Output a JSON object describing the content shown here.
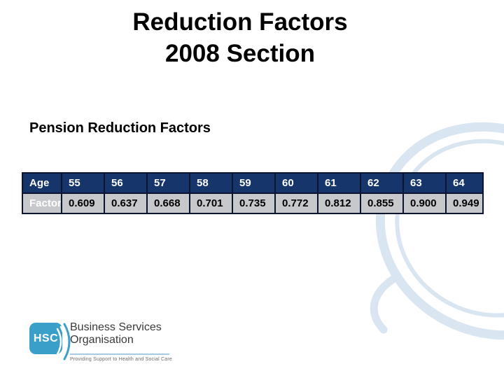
{
  "slide": {
    "title_line1": "Reduction Factors",
    "title_line2": "2008 Section",
    "heading": "Pension Reduction Factors"
  },
  "table": {
    "age_row_label": "Age",
    "factor_row_label": "Factor",
    "ages": [
      "55",
      "56",
      "57",
      "58",
      "59",
      "60",
      "61",
      "62",
      "63",
      "64"
    ],
    "factors": [
      "0.609",
      "0.637",
      "0.668",
      "0.701",
      "0.735",
      "0.772",
      "0.812",
      "0.855",
      "0.900",
      "0.949"
    ]
  },
  "logo": {
    "acronym": "HSC",
    "org_line1": "Business Services",
    "org_line2": "Organisation",
    "tagline": "Providing Support to Health and Social Care"
  },
  "icons": {
    "swoosh": "decorative light-blue ellipse swoosh",
    "logo_arcs": "curved arc strokes beside HSC square"
  },
  "colors": {
    "table_header_bg": "#15356b",
    "table_row_bg": "#c7c8cc",
    "table_border": "#0c1530",
    "swoosh_blue": "#d9e6f2",
    "logo_blue": "#3ba0c9",
    "logo_divider_blue": "#a6cce4"
  }
}
